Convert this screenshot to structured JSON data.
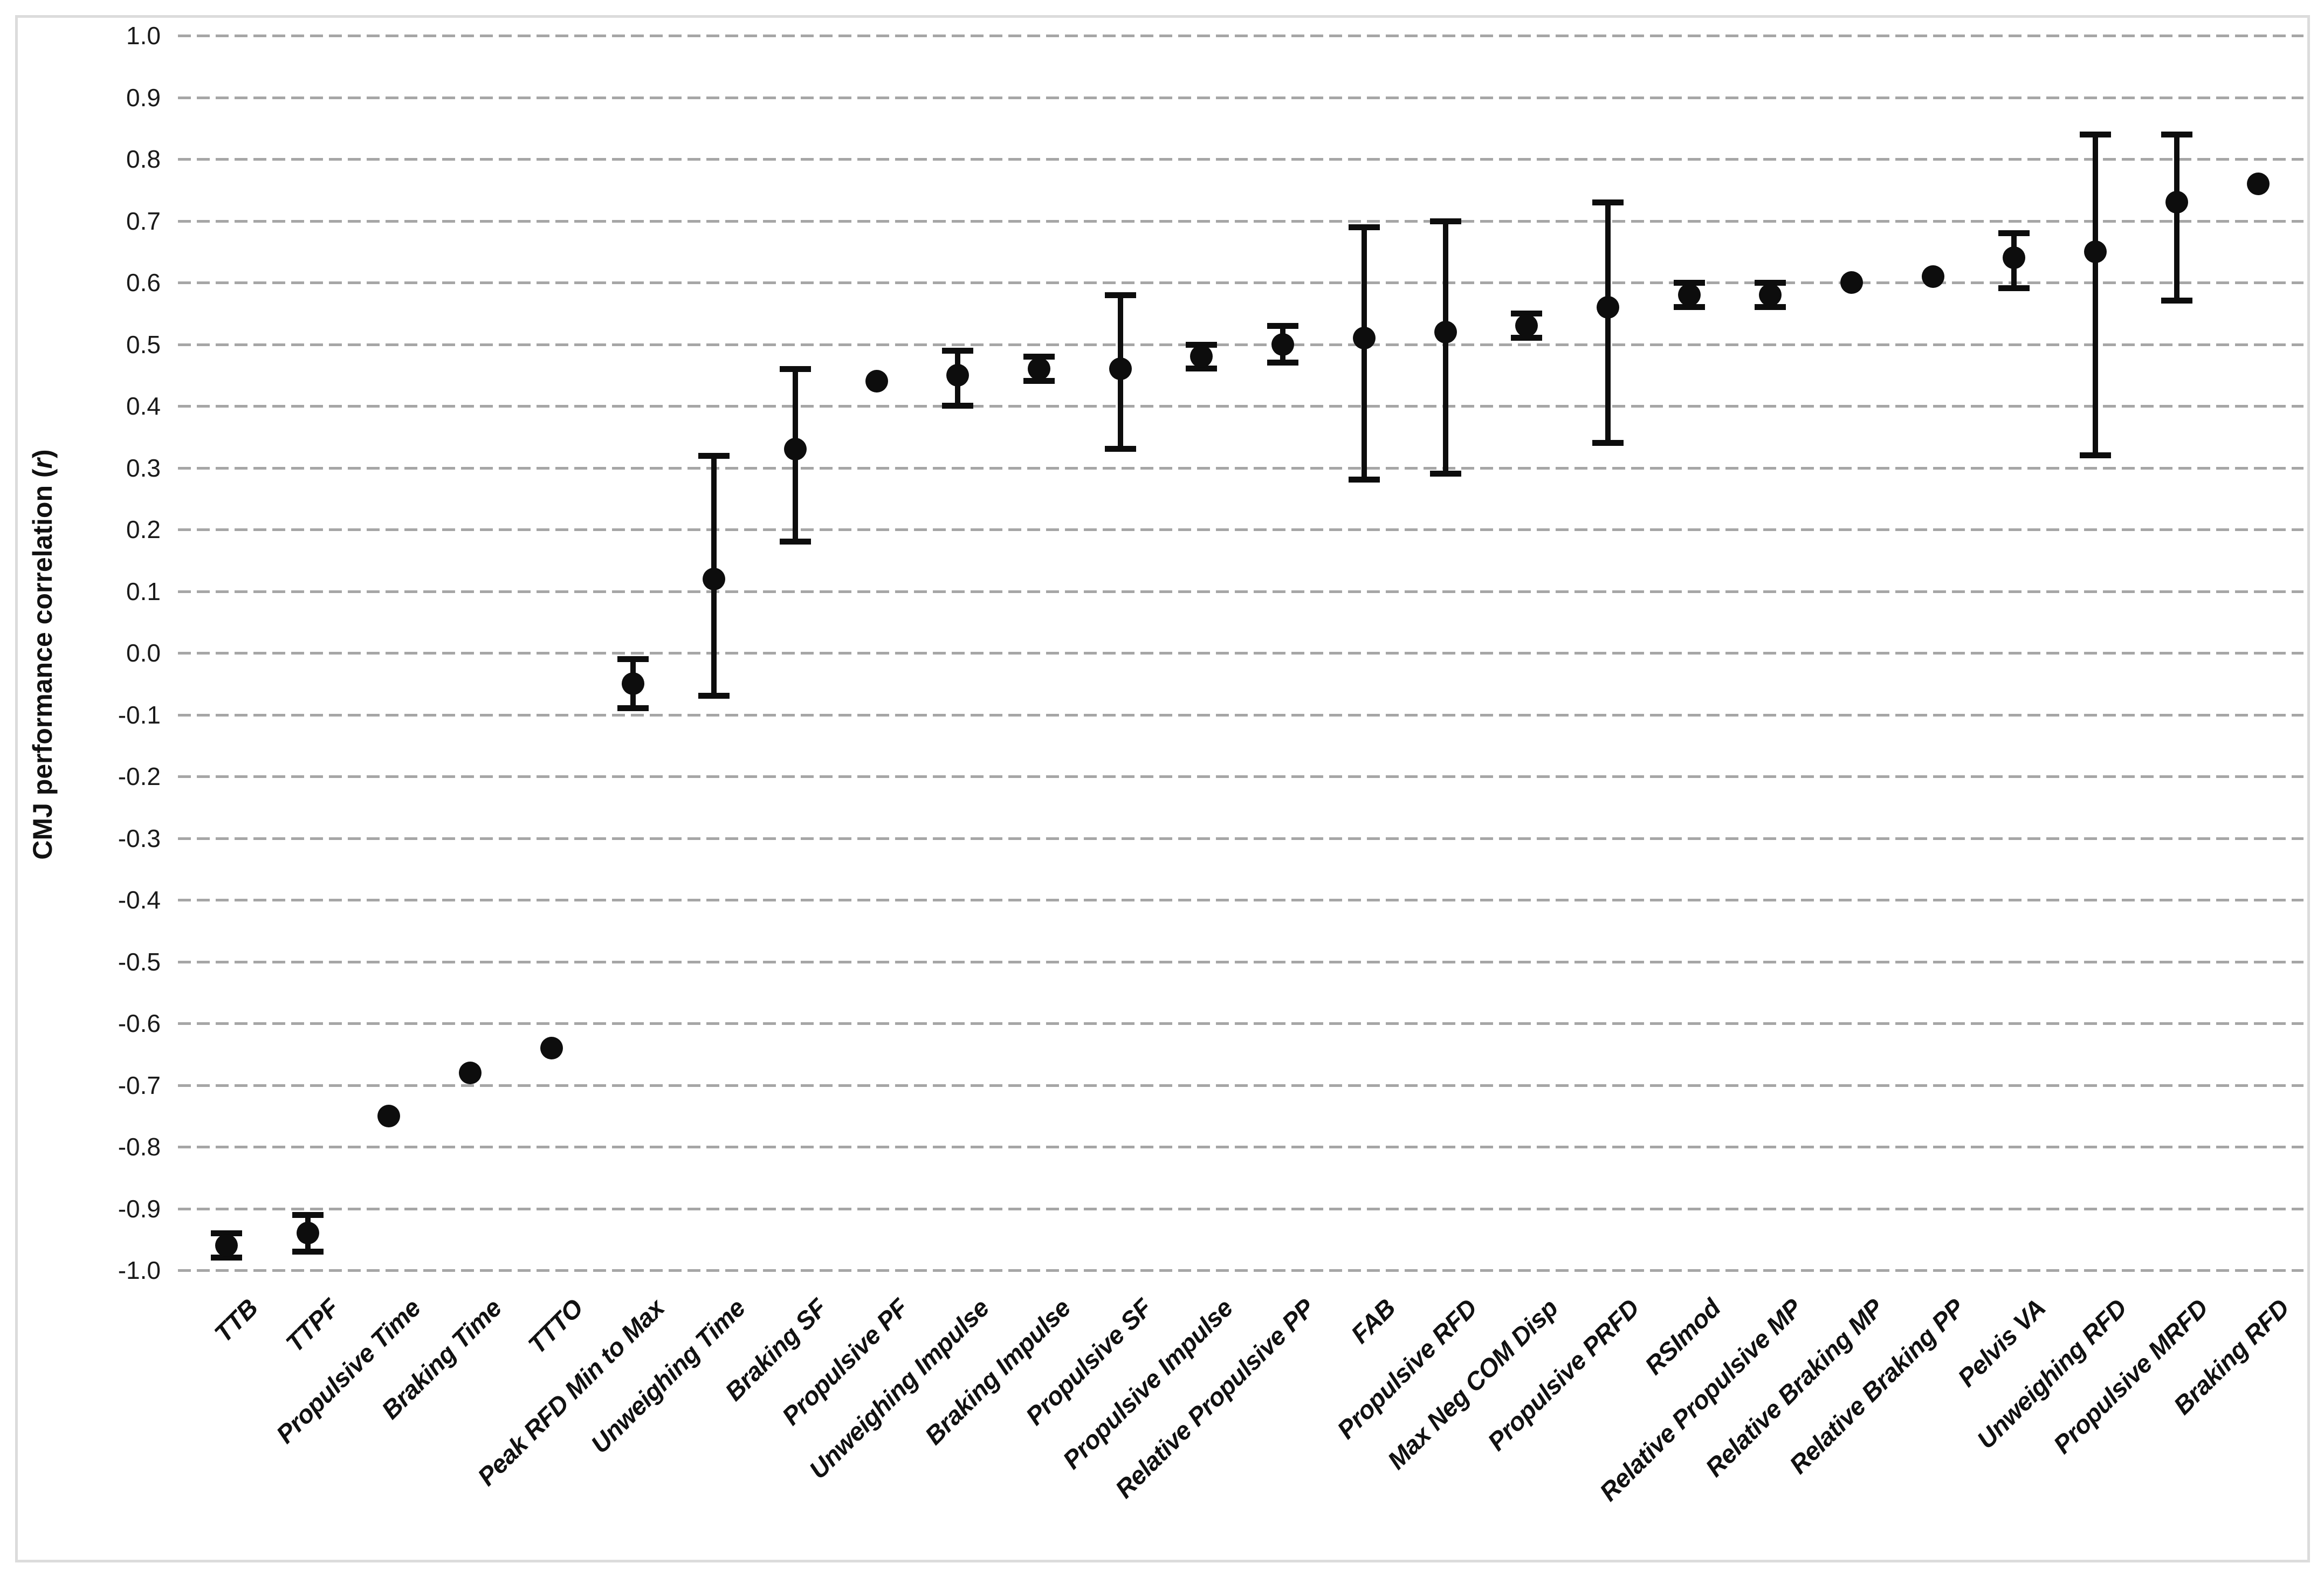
{
  "chart_data": {
    "type": "scatter",
    "title": "",
    "xlabel": "",
    "ylabel": "CMJ performance correlation (r)",
    "ylabel_prefix": "CMJ performance correlation (",
    "ylabel_var": "r",
    "ylabel_suffix": ")",
    "ylim": [
      -1.0,
      1.0
    ],
    "ytick_step": 0.1,
    "ytick_labels": [
      "1.0",
      "0.9",
      "0.8",
      "0.7",
      "0.6",
      "0.5",
      "0.4",
      "0.3",
      "0.2",
      "0.1",
      "0.0",
      "-0.1",
      "-0.2",
      "-0.3",
      "-0.4",
      "-0.5",
      "-0.6",
      "-0.7",
      "-0.8",
      "-0.9",
      "-1.0"
    ],
    "grid": "horizontal-dashed",
    "legend_position": "none",
    "marker": "filled-circle",
    "marker_color": "#0d0d0d",
    "gridline_color": "#a6a6a6",
    "error_bars": "asymmetric-range-caps",
    "categories": [
      "TTB",
      "TTPF",
      "Propulsive Time",
      "Braking Time",
      "TTTO",
      "Peak RFD Min to Max",
      "Unweighing Time",
      "Braking SF",
      "Propulsive PF",
      "Unweighing Impulse",
      "Braking Impulse",
      "Propulsive SF",
      "Propulsive Impulse",
      "Relative Propulsive PP",
      "FAB",
      "Propulsive RFD",
      "Max Neg COM Disp",
      "Propulsive PRFD",
      "RSImod",
      "Relative Propulsive MP",
      "Relative Braking MP",
      "Relative Braking PP",
      "Pelvis VA",
      "Unweighing RFD",
      "Propulsive MRFD",
      "Braking RFD"
    ],
    "series": [
      {
        "name": "CMJ performance correlation (r)",
        "points": [
          {
            "label": "TTB",
            "r": -0.96,
            "lo": -0.98,
            "hi": -0.94
          },
          {
            "label": "TTPF",
            "r": -0.94,
            "lo": -0.97,
            "hi": -0.91
          },
          {
            "label": "Propulsive Time",
            "r": -0.75,
            "lo": null,
            "hi": null
          },
          {
            "label": "Braking Time",
            "r": -0.68,
            "lo": null,
            "hi": null
          },
          {
            "label": "TTTO",
            "r": -0.64,
            "lo": null,
            "hi": null
          },
          {
            "label": "Peak RFD Min to Max",
            "r": -0.05,
            "lo": -0.09,
            "hi": -0.01
          },
          {
            "label": "Unweighing Time",
            "r": 0.12,
            "lo": -0.07,
            "hi": 0.32
          },
          {
            "label": "Braking SF",
            "r": 0.33,
            "lo": 0.18,
            "hi": 0.46
          },
          {
            "label": "Propulsive PF",
            "r": 0.44,
            "lo": null,
            "hi": null
          },
          {
            "label": "Unweighing Impulse",
            "r": 0.45,
            "lo": 0.4,
            "hi": 0.49
          },
          {
            "label": "Braking Impulse",
            "r": 0.46,
            "lo": 0.44,
            "hi": 0.48
          },
          {
            "label": "Propulsive SF",
            "r": 0.46,
            "lo": 0.33,
            "hi": 0.58
          },
          {
            "label": "Propulsive Impulse",
            "r": 0.48,
            "lo": 0.46,
            "hi": 0.5
          },
          {
            "label": "Relative Propulsive PP",
            "r": 0.5,
            "lo": 0.47,
            "hi": 0.53
          },
          {
            "label": "FAB",
            "r": 0.51,
            "lo": 0.28,
            "hi": 0.69
          },
          {
            "label": "Propulsive RFD",
            "r": 0.52,
            "lo": 0.29,
            "hi": 0.7
          },
          {
            "label": "Max Neg COM Disp",
            "r": 0.53,
            "lo": 0.51,
            "hi": 0.55
          },
          {
            "label": "Propulsive PRFD",
            "r": 0.56,
            "lo": 0.34,
            "hi": 0.73
          },
          {
            "label": "RSImod",
            "r": 0.58,
            "lo": 0.56,
            "hi": 0.6
          },
          {
            "label": "Relative Propulsive MP",
            "r": 0.58,
            "lo": 0.56,
            "hi": 0.6
          },
          {
            "label": "Relative Braking MP",
            "r": 0.6,
            "lo": null,
            "hi": null
          },
          {
            "label": "Relative Braking PP",
            "r": 0.61,
            "lo": null,
            "hi": null
          },
          {
            "label": "Pelvis VA",
            "r": 0.64,
            "lo": 0.59,
            "hi": 0.68
          },
          {
            "label": "Unweighing RFD",
            "r": 0.65,
            "lo": 0.32,
            "hi": 0.84
          },
          {
            "label": "Propulsive MRFD",
            "r": 0.73,
            "lo": 0.57,
            "hi": 0.84
          },
          {
            "label": "Braking RFD",
            "r": 0.76,
            "lo": null,
            "hi": null
          }
        ]
      }
    ]
  }
}
